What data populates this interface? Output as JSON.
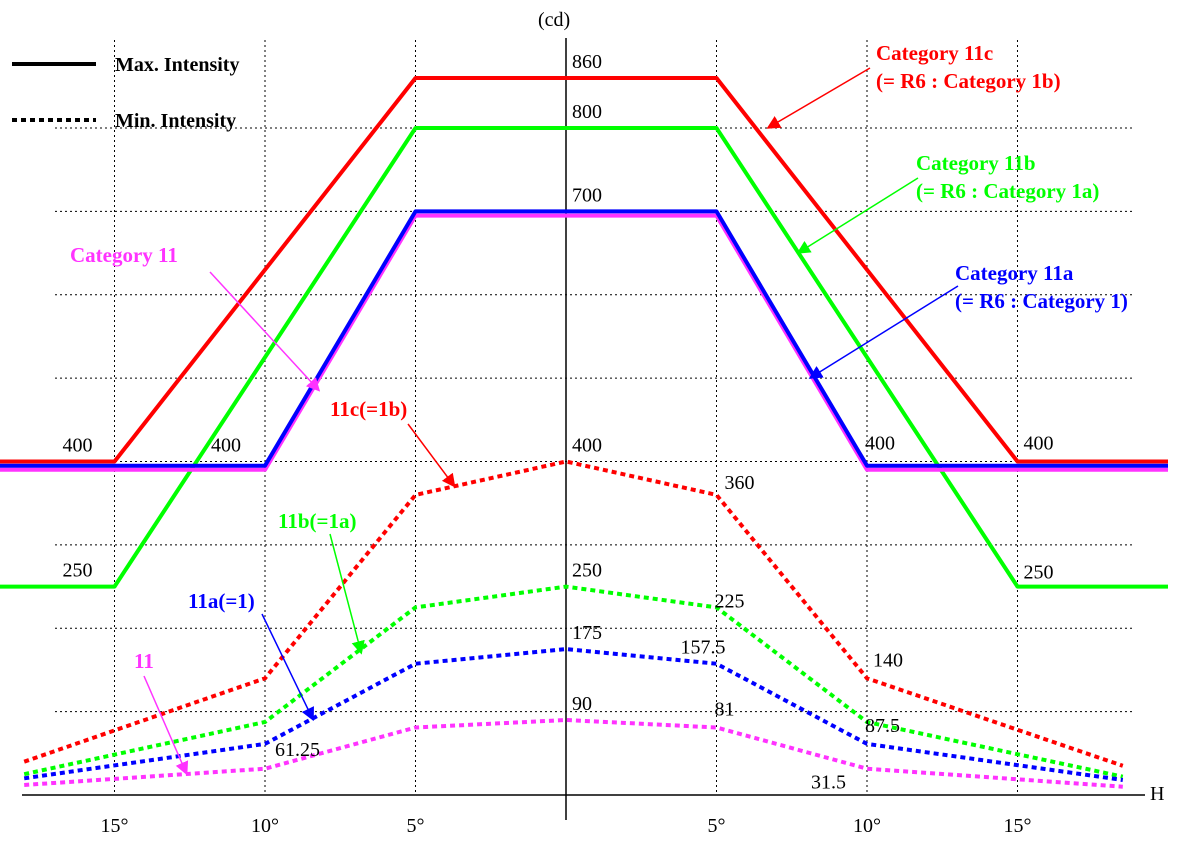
{
  "chart_data": {
    "type": "line",
    "title": "",
    "xlabel": "H",
    "ylabel": "(cd)",
    "x": [
      -19,
      -15,
      -10,
      -5,
      0,
      5,
      10,
      15,
      19
    ],
    "x_tick_labels": [
      {
        "x": -15,
        "label": "15°"
      },
      {
        "x": -10,
        "label": "10°"
      },
      {
        "x": -5,
        "label": "5°"
      },
      {
        "x": 5,
        "label": "5°"
      },
      {
        "x": 10,
        "label": "10°"
      },
      {
        "x": 15,
        "label": "15°"
      }
    ],
    "xlim": [
      -19,
      20
    ],
    "ylim": [
      0,
      900
    ],
    "grid": true,
    "colors": {
      "red": "#ff0000",
      "green": "#00ff00",
      "blue": "#0000ff",
      "magenta": "#ff33ff"
    },
    "legend": [
      {
        "label": "Max. Intensity",
        "style": "solid"
      },
      {
        "label": "Min. Intensity",
        "style": "dotted"
      }
    ],
    "series": [
      {
        "name": "Category 11c (= R6 : Category 1b)",
        "style": "solid",
        "color": "#ff0000",
        "points": [
          [
            -19,
            400
          ],
          [
            -15,
            400
          ],
          [
            -5,
            860
          ],
          [
            5,
            860
          ],
          [
            15,
            400
          ],
          [
            20,
            400
          ]
        ]
      },
      {
        "name": "Category 11b (= R6 : Category 1a)",
        "style": "solid",
        "color": "#00ff00",
        "points": [
          [
            -19,
            250
          ],
          [
            -15,
            250
          ],
          [
            -5,
            800
          ],
          [
            5,
            800
          ],
          [
            15,
            250
          ],
          [
            20,
            250
          ]
        ]
      },
      {
        "name": "Category 11",
        "style": "solid",
        "color": "#ff33ff",
        "points": [
          [
            -19,
            390
          ],
          [
            -10,
            390
          ],
          [
            -5,
            695
          ],
          [
            5,
            695
          ],
          [
            10,
            390
          ],
          [
            20,
            390
          ]
        ]
      },
      {
        "name": "Category 11a (= R6 : Category 1)",
        "style": "solid",
        "color": "#0000ff",
        "points": [
          [
            -19,
            395
          ],
          [
            -10,
            395
          ],
          [
            -5,
            700
          ],
          [
            5,
            700
          ],
          [
            10,
            395
          ],
          [
            20,
            395
          ]
        ]
      },
      {
        "name": "11c(=1b)",
        "style": "dotted",
        "color": "#ff0000",
        "points": [
          [
            -18,
            40
          ],
          [
            -10,
            140
          ],
          [
            -5,
            360
          ],
          [
            0,
            400
          ],
          [
            5,
            360
          ],
          [
            10,
            140
          ],
          [
            18.5,
            35
          ]
        ]
      },
      {
        "name": "11b(=1a)",
        "style": "dotted",
        "color": "#00ff00",
        "points": [
          [
            -18,
            25
          ],
          [
            -10,
            87.5
          ],
          [
            -5,
            225
          ],
          [
            0,
            250
          ],
          [
            5,
            225
          ],
          [
            10,
            87.5
          ],
          [
            18.5,
            22
          ]
        ]
      },
      {
        "name": "11a(=1)",
        "style": "dotted",
        "color": "#0000ff",
        "points": [
          [
            -18,
            20
          ],
          [
            -10,
            61.25
          ],
          [
            -5,
            157.5
          ],
          [
            0,
            175
          ],
          [
            5,
            157.5
          ],
          [
            10,
            61.25
          ],
          [
            18.5,
            18
          ]
        ]
      },
      {
        "name": "11",
        "style": "dotted",
        "color": "#ff33ff",
        "points": [
          [
            -18,
            12
          ],
          [
            -10,
            31.5
          ],
          [
            -5,
            81
          ],
          [
            0,
            90
          ],
          [
            5,
            81
          ],
          [
            10,
            31.5
          ],
          [
            18.5,
            10
          ]
        ]
      }
    ],
    "value_labels": [
      {
        "text": "860",
        "x": 0,
        "y": 860
      },
      {
        "text": "800",
        "x": 0,
        "y": 800
      },
      {
        "text": "700",
        "x": 0,
        "y": 700
      },
      {
        "text": "400",
        "x": 0,
        "y": 400
      },
      {
        "text": "250",
        "x": 0,
        "y": 250
      },
      {
        "text": "175",
        "x": 0,
        "y": 175
      },
      {
        "text": "90",
        "x": 0,
        "y": 90
      },
      {
        "text": "400",
        "x": -15,
        "y": 400
      },
      {
        "text": "400",
        "x": -10,
        "y": 400
      },
      {
        "text": "400",
        "x": 10,
        "y": 400
      },
      {
        "text": "400",
        "x": 15,
        "y": 400
      },
      {
        "text": "250",
        "x": -15,
        "y": 250
      },
      {
        "text": "250",
        "x": 15,
        "y": 250
      },
      {
        "text": "360",
        "x": 5,
        "y": 360
      },
      {
        "text": "225",
        "x": 5,
        "y": 225
      },
      {
        "text": "157.5",
        "x": 5,
        "y": 157.5
      },
      {
        "text": "81",
        "x": 5,
        "y": 81
      },
      {
        "text": "140",
        "x": 10,
        "y": 140
      },
      {
        "text": "87.5",
        "x": 10,
        "y": 87.5
      },
      {
        "text": "61.25",
        "x": -10,
        "y": 61.25
      },
      {
        "text": "31.5",
        "x": 10,
        "y": 31.5
      }
    ],
    "annotations": [
      {
        "lines": [
          "Category 11c",
          "(= R6 : Category 1b)"
        ],
        "color": "#ff0000",
        "points_to": [
          6.7,
          800
        ]
      },
      {
        "lines": [
          "Category 11b",
          "(= R6 : Category 1a)"
        ],
        "color": "#00ff00",
        "points_to": [
          7.7,
          650
        ]
      },
      {
        "lines": [
          "Category 11a",
          "(= R6 : Category 1)"
        ],
        "color": "#0000ff",
        "points_to": [
          8.1,
          500
        ]
      },
      {
        "lines": [
          "Category 11"
        ],
        "color": "#ff33ff",
        "points_to": [
          -8.2,
          485
        ]
      },
      {
        "lines": [
          "11c(=1b)"
        ],
        "color": "#ff0000",
        "points_to": [
          -3.7,
          370
        ]
      },
      {
        "lines": [
          "11b(=1a)"
        ],
        "color": "#00ff00",
        "points_to": [
          -6.8,
          170
        ]
      },
      {
        "lines": [
          "11a(=1)"
        ],
        "color": "#0000ff",
        "points_to": [
          -8.4,
          90
        ]
      },
      {
        "lines": [
          "11"
        ],
        "color": "#ff33ff",
        "points_to": [
          -12.6,
          25
        ]
      }
    ]
  }
}
